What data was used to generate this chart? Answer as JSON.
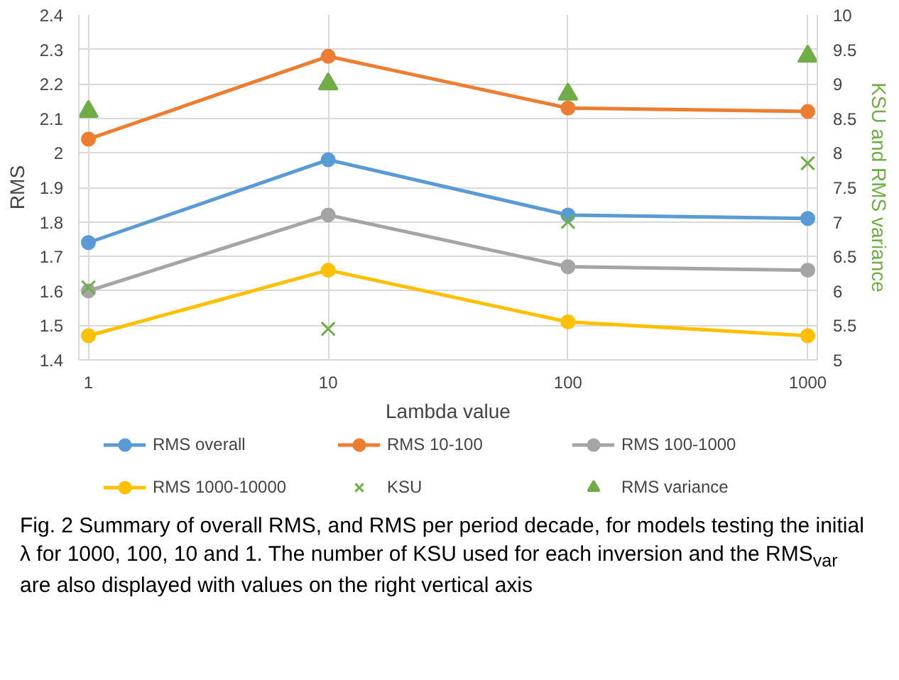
{
  "chart_data": {
    "type": "line",
    "xlabel": "Lambda value",
    "ylabel": "RMS",
    "y2label": "KSU and RMS variance",
    "categories": [
      "1",
      "10",
      "100",
      "1000"
    ],
    "ylim": [
      1.4,
      2.4
    ],
    "yticks": [
      1.4,
      1.5,
      1.6,
      1.7,
      1.8,
      1.9,
      {
        "value": 2.0,
        "label": "2"
      },
      2.1,
      2.2,
      2.3,
      2.4
    ],
    "y2lim": [
      5,
      10
    ],
    "y2ticks": [
      5,
      5.5,
      6,
      6.5,
      7,
      7.5,
      8,
      8.5,
      9,
      9.5,
      10
    ],
    "grid": true,
    "legend": "bottom",
    "marker": "circle",
    "series": [
      {
        "name": "RMS overall",
        "color": "#5b9bd5",
        "values": [
          1.74,
          1.98,
          1.82,
          1.81
        ]
      },
      {
        "name": "RMS 10-100",
        "color": "#ed7d31",
        "values": [
          2.04,
          2.28,
          2.13,
          2.12
        ]
      },
      {
        "name": "RMS 100-1000",
        "color": "#a5a5a5",
        "values": [
          1.6,
          1.82,
          1.67,
          1.66
        ]
      },
      {
        "name": "RMS 1000-10000",
        "color": "#ffc000",
        "values": [
          1.47,
          1.66,
          1.51,
          1.47
        ]
      },
      {
        "name": "KSU",
        "type": "scatter",
        "marker": "cross",
        "axis": "y2",
        "color": "#70ad47",
        "values": [
          6.05,
          5.45,
          7.0,
          7.85
        ]
      },
      {
        "name": "RMS variance",
        "type": "scatter",
        "marker": "triangle",
        "axis": "y2",
        "color": "#70ad47",
        "values": [
          8.6,
          9.0,
          8.85,
          9.4
        ]
      }
    ],
    "annotations": [
      "Fig. 2  Summary of overall RMS, and RMS per period decade, for models testing the initial λ for 1000, 100, 10 and 1. The number of KSU used for each inversion and the RMS$_{var}$ are also displayed with values on the right vertical axis"
    ]
  }
}
